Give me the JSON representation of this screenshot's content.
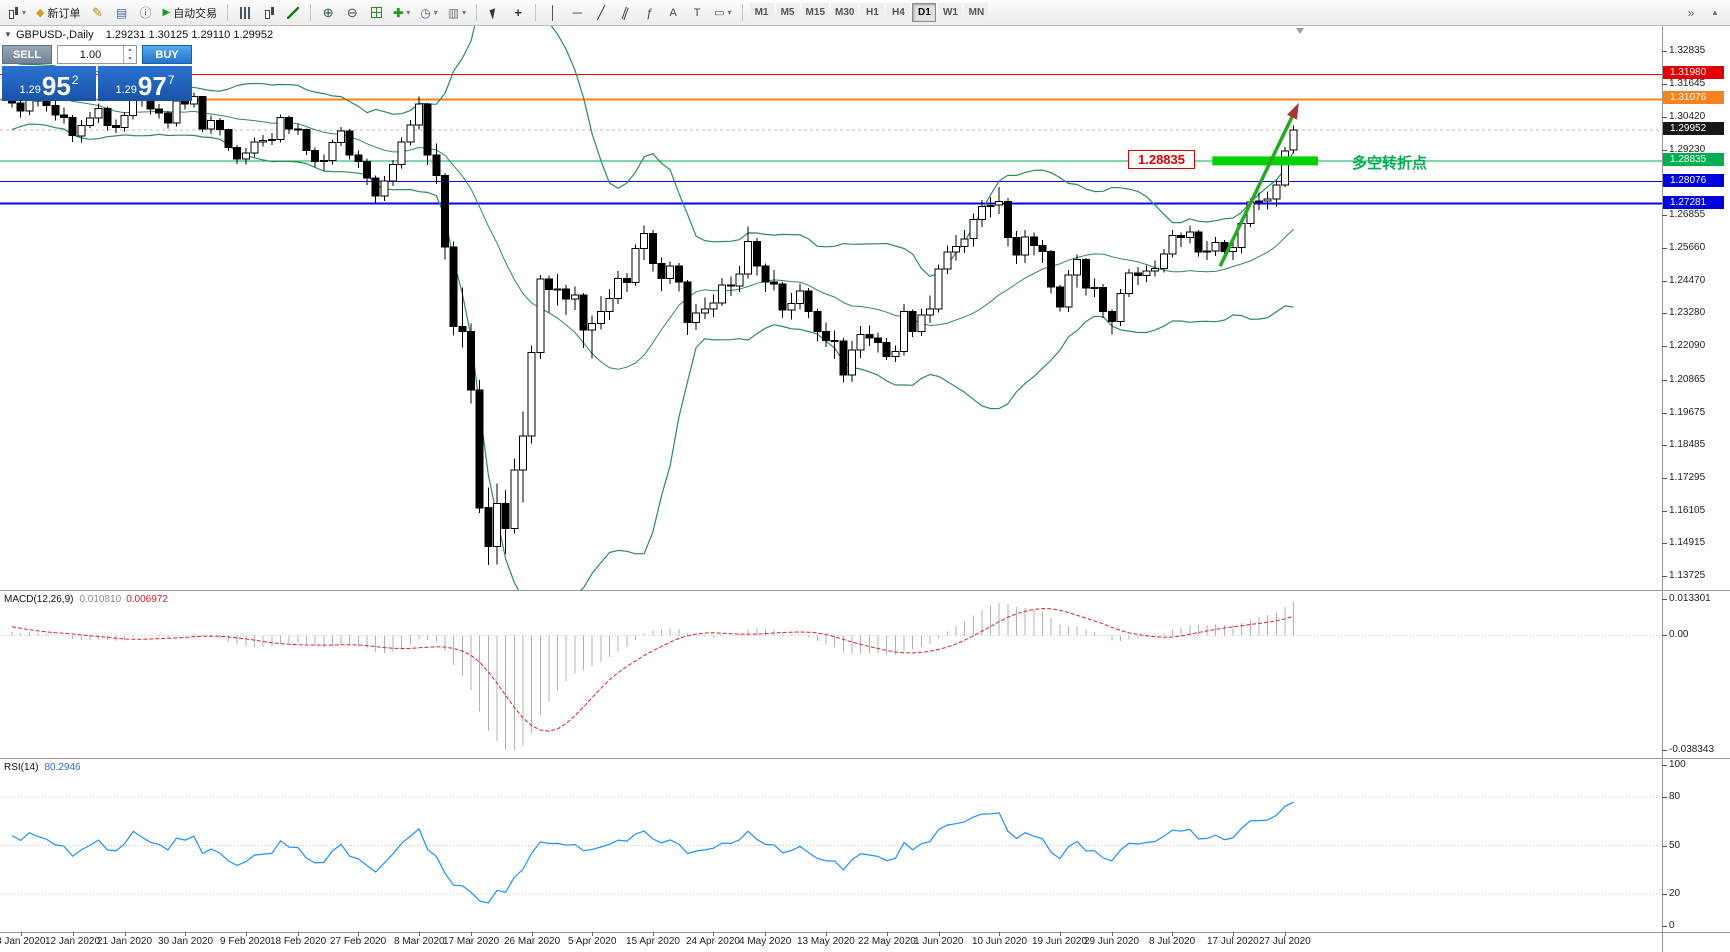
{
  "toolbar": {
    "new_order_label": "新订单",
    "autotrading_label": "自动交易",
    "timeframes": [
      "M1",
      "M5",
      "M15",
      "M30",
      "H1",
      "H4",
      "D1",
      "W1",
      "MN"
    ],
    "active_timeframe": "D1",
    "overflow_glyph": "»",
    "collapse_glyph": "▴"
  },
  "header": {
    "symbol": "GBPUSD-,Daily",
    "ohlc": "1.29231 1.30125 1.29110 1.29952"
  },
  "trade_panel": {
    "sell_label": "SELL",
    "buy_label": "BUY",
    "volume": "1.00",
    "sell_price_head": "1.29",
    "sell_price_big": "95",
    "sell_price_sup": "2",
    "buy_price_head": "1.29",
    "buy_price_big": "97",
    "buy_price_sup": "7"
  },
  "price_scale": {
    "ticks": [
      "1.32835",
      "1.31645",
      "1.30420",
      "1.29230",
      "1.26855",
      "1.25660",
      "1.24470",
      "1.23280",
      "1.22090",
      "1.20865",
      "1.19675",
      "1.18485",
      "1.17295",
      "1.16105",
      "1.14915",
      "1.13725"
    ],
    "price_labels": [
      {
        "text": "1.31980",
        "price": 1.3198,
        "bg": "#e00000"
      },
      {
        "text": "1.31076",
        "price": 1.31076,
        "bg": "#f5821f"
      },
      {
        "text": "1.29952",
        "price": 1.29952,
        "bg": "#181818"
      },
      {
        "text": "1.28835",
        "price": 1.28835,
        "bg": "#00b050"
      },
      {
        "text": "1.28076",
        "price": 1.28076,
        "bg": "#0000dd"
      },
      {
        "text": "1.27281",
        "price": 1.27281,
        "bg": "#0000dd"
      }
    ]
  },
  "hlines": [
    {
      "price": 1.3198,
      "color": "#ff0000",
      "width": 1
    },
    {
      "price": 1.31076,
      "color": "#f5821f",
      "width": 2
    },
    {
      "price": 1.28835,
      "color": "#00b050",
      "width": 1
    },
    {
      "price": 1.28076,
      "color": "#0000ff",
      "width": 1
    },
    {
      "price": 1.27281,
      "color": "#0000ff",
      "width": 2
    }
  ],
  "bid": {
    "price": 1.29952
  },
  "annotations": {
    "level_box": {
      "text": "1.28835",
      "color": "#dd0000"
    },
    "zone": {
      "price": 1.28835,
      "bar_from": 138.6,
      "bar_to": 150.8,
      "color": "#00d200"
    },
    "note": {
      "text": "多空转折点",
      "color": "#00b050"
    },
    "arrow": {
      "from_bar": 139.5,
      "from_price": 1.25,
      "to_bar": 148.6,
      "to_price": 1.3095,
      "shaft_color": "#22aa22",
      "head_color": "#aa3333"
    }
  },
  "macd_panel": {
    "label": "MACD(12,26,9)",
    "value_main": "0.010810",
    "value_signal": "0.006972",
    "scale": [
      "0.013301",
      "0.00",
      "-0.038343"
    ]
  },
  "rsi_panel": {
    "label": "RSI(14)",
    "value": "80.2946",
    "scale": [
      "100",
      "80",
      "50",
      "20",
      "0"
    ],
    "levels": [
      80,
      50,
      20
    ]
  },
  "time_axis": {
    "labels": [
      "3 Jan 2020",
      "12 Jan 2020",
      "21 Jan 2020",
      "30 Jan 2020",
      "9 Feb 2020",
      "18 Feb 2020",
      "27 Feb 2020",
      "8 Mar 2020",
      "17 Mar 2020",
      "26 Mar 2020",
      "5 Apr 2020",
      "15 Apr 2020",
      "24 Apr 2020",
      "4 May 2020",
      "13 May 2020",
      "22 May 2020",
      "1 Jun 2020",
      "10 Jun 2020",
      "19 Jun 2020",
      "29 Jun 2020",
      "8 Jul 2020",
      "17 Jul 2020",
      "27 Jul 2020"
    ],
    "bar_indices": [
      1,
      7,
      13,
      20,
      27,
      33,
      40,
      47,
      53,
      60,
      67,
      74,
      81,
      87,
      94,
      101,
      107,
      114,
      121,
      127,
      134,
      141,
      147
    ]
  },
  "chart_data": {
    "type": "candlestick",
    "symbol": "GBPUSD",
    "timeframe": "Daily",
    "overlays": [
      {
        "name": "bollinger-bands",
        "color": "#2e8b57"
      }
    ],
    "lower_indicators": [
      {
        "name": "MACD",
        "params": "12,26,9"
      },
      {
        "name": "RSI",
        "params": "14"
      }
    ],
    "bars_ohlc": [
      [
        1.311,
        1.3132,
        1.3078,
        1.3095
      ],
      [
        1.3095,
        1.3108,
        1.3042,
        1.3065
      ],
      [
        1.3065,
        1.314,
        1.305,
        1.3125
      ],
      [
        1.3125,
        1.3132,
        1.3082,
        1.3102
      ],
      [
        1.3102,
        1.312,
        1.3064,
        1.3085
      ],
      [
        1.3085,
        1.3102,
        1.303,
        1.305
      ],
      [
        1.305,
        1.3078,
        1.302,
        1.3042
      ],
      [
        1.3042,
        1.305,
        1.2952,
        1.2975
      ],
      [
        1.2975,
        1.3032,
        1.295,
        1.3012
      ],
      [
        1.3012,
        1.3062,
        1.3004,
        1.304
      ],
      [
        1.304,
        1.3092,
        1.3022,
        1.3075
      ],
      [
        1.3075,
        1.3082,
        1.2994,
        1.3012
      ],
      [
        1.3012,
        1.3034,
        1.2985,
        1.3005
      ],
      [
        1.3005,
        1.3062,
        1.299,
        1.3048
      ],
      [
        1.3048,
        1.3152,
        1.3035,
        1.314
      ],
      [
        1.314,
        1.315,
        1.3082,
        1.3105
      ],
      [
        1.3105,
        1.3118,
        1.3052,
        1.3072
      ],
      [
        1.3072,
        1.309,
        1.3038,
        1.3058
      ],
      [
        1.3058,
        1.3066,
        1.3002,
        1.3022
      ],
      [
        1.3022,
        1.3112,
        1.3008,
        1.3102
      ],
      [
        1.3102,
        1.312,
        1.307,
        1.309
      ],
      [
        1.309,
        1.3132,
        1.3078,
        1.3118
      ],
      [
        1.3118,
        1.312,
        1.2988,
        1.3
      ],
      [
        1.3,
        1.3048,
        1.2982,
        1.303
      ],
      [
        1.303,
        1.304,
        1.2976,
        1.2998
      ],
      [
        1.2998,
        1.3002,
        1.292,
        1.2932
      ],
      [
        1.2932,
        1.2942,
        1.2872,
        1.289
      ],
      [
        1.289,
        1.293,
        1.287,
        1.2912
      ],
      [
        1.2912,
        1.2968,
        1.2898,
        1.2952
      ],
      [
        1.2952,
        1.2978,
        1.2936,
        1.2958
      ],
      [
        1.2958,
        1.2985,
        1.2942,
        1.2962
      ],
      [
        1.2962,
        1.3052,
        1.295,
        1.3042
      ],
      [
        1.3042,
        1.3048,
        1.2982,
        1.3
      ],
      [
        1.3,
        1.3018,
        1.2978,
        1.2998
      ],
      [
        1.2998,
        1.3002,
        1.2905,
        1.2922
      ],
      [
        1.2922,
        1.2932,
        1.2862,
        1.2882
      ],
      [
        1.2882,
        1.2906,
        1.2848,
        1.2885
      ],
      [
        1.2885,
        1.2962,
        1.287,
        1.295
      ],
      [
        1.295,
        1.3006,
        1.2938,
        1.2992
      ],
      [
        1.2992,
        1.3,
        1.2888,
        1.2905
      ],
      [
        1.2905,
        1.2922,
        1.2858,
        1.2882
      ],
      [
        1.2882,
        1.2892,
        1.2796,
        1.2822
      ],
      [
        1.2822,
        1.283,
        1.2725,
        1.2755
      ],
      [
        1.2755,
        1.2828,
        1.2738,
        1.281
      ],
      [
        1.281,
        1.2886,
        1.2792,
        1.287
      ],
      [
        1.287,
        1.2968,
        1.2856,
        1.2952
      ],
      [
        1.2952,
        1.3032,
        1.294,
        1.3015
      ],
      [
        1.3015,
        1.3118,
        1.2998,
        1.309
      ],
      [
        1.309,
        1.3095,
        1.2868,
        1.2905
      ],
      [
        1.2905,
        1.2946,
        1.28,
        1.283
      ],
      [
        1.283,
        1.284,
        1.2525,
        1.257
      ],
      [
        1.257,
        1.259,
        1.2248,
        1.228
      ],
      [
        1.228,
        1.2422,
        1.2205,
        1.2262
      ],
      [
        1.2262,
        1.2292,
        1.2,
        1.205
      ],
      [
        1.205,
        1.2086,
        1.1602,
        1.1621
      ],
      [
        1.1621,
        1.1695,
        1.1412,
        1.148
      ],
      [
        1.148,
        1.171,
        1.1415,
        1.1637
      ],
      [
        1.1637,
        1.1685,
        1.1452,
        1.1546
      ],
      [
        1.1546,
        1.18,
        1.1528,
        1.1758
      ],
      [
        1.1758,
        1.1972,
        1.164,
        1.1882
      ],
      [
        1.1882,
        1.2212,
        1.1855,
        1.2186
      ],
      [
        1.2186,
        1.2468,
        1.2162,
        1.2453
      ],
      [
        1.2453,
        1.2466,
        1.2332,
        1.2416
      ],
      [
        1.2416,
        1.2472,
        1.2358,
        1.2417
      ],
      [
        1.2417,
        1.2432,
        1.2322,
        1.238
      ],
      [
        1.238,
        1.2426,
        1.234,
        1.2395
      ],
      [
        1.2395,
        1.2402,
        1.2202,
        1.2268
      ],
      [
        1.2268,
        1.232,
        1.2164,
        1.2292
      ],
      [
        1.2292,
        1.2392,
        1.227,
        1.2335
      ],
      [
        1.2335,
        1.2418,
        1.2304,
        1.2382
      ],
      [
        1.2382,
        1.2482,
        1.2362,
        1.2455
      ],
      [
        1.2455,
        1.2476,
        1.2406,
        1.244
      ],
      [
        1.244,
        1.258,
        1.2428,
        1.2565
      ],
      [
        1.2565,
        1.2648,
        1.2522,
        1.262
      ],
      [
        1.262,
        1.2632,
        1.248,
        1.251
      ],
      [
        1.251,
        1.2532,
        1.241,
        1.2455
      ],
      [
        1.2455,
        1.2518,
        1.2436,
        1.25
      ],
      [
        1.25,
        1.2512,
        1.2408,
        1.2442
      ],
      [
        1.2442,
        1.245,
        1.225,
        1.2295
      ],
      [
        1.2295,
        1.2362,
        1.2268,
        1.233
      ],
      [
        1.233,
        1.2386,
        1.2308,
        1.2345
      ],
      [
        1.2345,
        1.2398,
        1.2316,
        1.2367
      ],
      [
        1.2367,
        1.2458,
        1.2356,
        1.2432
      ],
      [
        1.2432,
        1.2462,
        1.2392,
        1.2428
      ],
      [
        1.2428,
        1.25,
        1.2406,
        1.2472
      ],
      [
        1.2472,
        1.2644,
        1.2456,
        1.259
      ],
      [
        1.259,
        1.2602,
        1.2466,
        1.25
      ],
      [
        1.25,
        1.251,
        1.2406,
        1.2442
      ],
      [
        1.2442,
        1.2486,
        1.2412,
        1.2436
      ],
      [
        1.2436,
        1.2442,
        1.2312,
        1.234
      ],
      [
        1.234,
        1.2402,
        1.2306,
        1.2365
      ],
      [
        1.2365,
        1.2438,
        1.2342,
        1.241
      ],
      [
        1.241,
        1.242,
        1.2312,
        1.2336
      ],
      [
        1.2336,
        1.2346,
        1.2226,
        1.2262
      ],
      [
        1.2262,
        1.2296,
        1.2206,
        1.223
      ],
      [
        1.223,
        1.2266,
        1.2162,
        1.2228
      ],
      [
        1.2228,
        1.2238,
        1.2076,
        1.2105
      ],
      [
        1.2105,
        1.2228,
        1.2078,
        1.2196
      ],
      [
        1.2196,
        1.2282,
        1.2166,
        1.2252
      ],
      [
        1.2252,
        1.2284,
        1.221,
        1.2238
      ],
      [
        1.2238,
        1.2258,
        1.2186,
        1.2222
      ],
      [
        1.2222,
        1.2238,
        1.2158,
        1.2172
      ],
      [
        1.2172,
        1.2212,
        1.2152,
        1.219
      ],
      [
        1.219,
        1.2362,
        1.2176,
        1.2336
      ],
      [
        1.2336,
        1.2342,
        1.2242,
        1.2262
      ],
      [
        1.2262,
        1.2346,
        1.2246,
        1.2322
      ],
      [
        1.2322,
        1.2394,
        1.2294,
        1.2345
      ],
      [
        1.2345,
        1.2506,
        1.2332,
        1.249
      ],
      [
        1.249,
        1.2576,
        1.2472,
        1.2552
      ],
      [
        1.2552,
        1.2614,
        1.252,
        1.2572
      ],
      [
        1.2572,
        1.2632,
        1.2548,
        1.26
      ],
      [
        1.26,
        1.2692,
        1.2572,
        1.267
      ],
      [
        1.267,
        1.2742,
        1.2642,
        1.2718
      ],
      [
        1.2718,
        1.2752,
        1.2678,
        1.2722
      ],
      [
        1.2722,
        1.2788,
        1.269,
        1.2736
      ],
      [
        1.2736,
        1.2748,
        1.2572,
        1.2604
      ],
      [
        1.2604,
        1.2628,
        1.2508,
        1.2541
      ],
      [
        1.2541,
        1.2632,
        1.2512,
        1.2606
      ],
      [
        1.2606,
        1.2622,
        1.254,
        1.2576
      ],
      [
        1.2576,
        1.2596,
        1.2512,
        1.2554
      ],
      [
        1.2554,
        1.256,
        1.24,
        1.2424
      ],
      [
        1.2424,
        1.2432,
        1.2336,
        1.2352
      ],
      [
        1.2352,
        1.2486,
        1.2334,
        1.2468
      ],
      [
        1.2468,
        1.2542,
        1.2422,
        1.2524
      ],
      [
        1.2524,
        1.253,
        1.2394,
        1.242
      ],
      [
        1.242,
        1.2456,
        1.2388,
        1.2422
      ],
      [
        1.2422,
        1.2436,
        1.2312,
        1.2336
      ],
      [
        1.2336,
        1.2342,
        1.2252,
        1.2298
      ],
      [
        1.2298,
        1.2418,
        1.2282,
        1.24
      ],
      [
        1.24,
        1.249,
        1.2388,
        1.2476
      ],
      [
        1.2476,
        1.2498,
        1.2432,
        1.2466
      ],
      [
        1.2466,
        1.2502,
        1.2442,
        1.2482
      ],
      [
        1.2482,
        1.252,
        1.2462,
        1.2492
      ],
      [
        1.2492,
        1.2562,
        1.2478,
        1.2544
      ],
      [
        1.2544,
        1.2632,
        1.2532,
        1.2612
      ],
      [
        1.2612,
        1.2622,
        1.257,
        1.2604
      ],
      [
        1.2604,
        1.2648,
        1.2582,
        1.2624
      ],
      [
        1.2624,
        1.2632,
        1.2536,
        1.2552
      ],
      [
        1.2552,
        1.2592,
        1.2522,
        1.2556
      ],
      [
        1.2556,
        1.2606,
        1.2538,
        1.2586
      ],
      [
        1.2586,
        1.2596,
        1.2528,
        1.2554
      ],
      [
        1.2554,
        1.2586,
        1.2522,
        1.2568
      ],
      [
        1.2568,
        1.2668,
        1.2546,
        1.2656
      ],
      [
        1.2656,
        1.2746,
        1.2642,
        1.2734
      ],
      [
        1.2734,
        1.2768,
        1.2704,
        1.2738
      ],
      [
        1.2738,
        1.2772,
        1.2706,
        1.2744
      ],
      [
        1.2744,
        1.2812,
        1.2718,
        1.2796
      ],
      [
        1.2796,
        1.2934,
        1.2788,
        1.292
      ],
      [
        1.29231,
        1.30125,
        1.2911,
        1.29952
      ]
    ]
  }
}
